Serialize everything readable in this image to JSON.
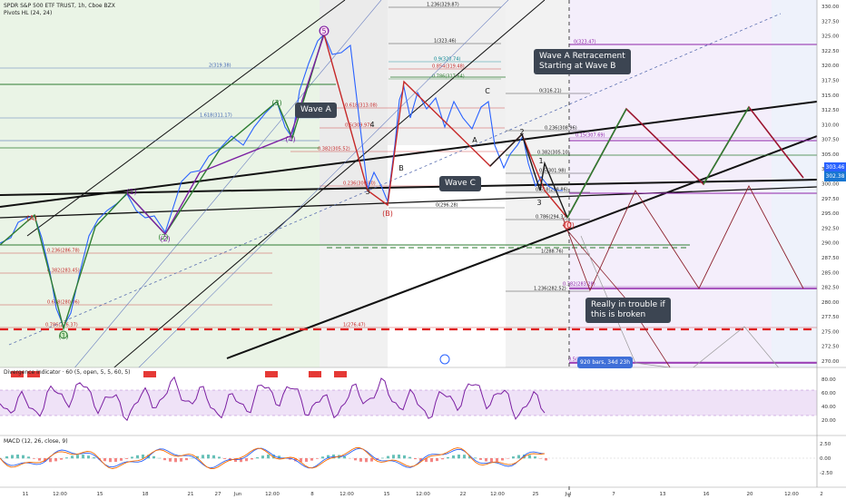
{
  "header": {
    "symbol": "SPDR S&P 500 ETF TRUST, 1h, Cboe BZX",
    "pivots": "Pivots HL (24, 24)",
    "divergence": "Divergence Indicator · 60 (5, open, 5, 5, 60, 5)",
    "macd": "MACD (12, 26, close, 9)"
  },
  "annotations": {
    "wave_a": "Wave A",
    "wave_c": "Wave C",
    "retracement": "Wave A Retracement\nStarting at Wave B",
    "trouble": "Really in trouble if\nthis is broken",
    "bars_range": "920 bars, 34d 23h"
  },
  "price_tags": {
    "last": "303.46",
    "prev": "302.38"
  },
  "chart_data": {
    "type": "line",
    "price_axis": [
      "330.00",
      "327.50",
      "325.00",
      "322.50",
      "320.00",
      "317.50",
      "315.00",
      "312.50",
      "310.00",
      "307.50",
      "305.00",
      "302.50",
      "300.00",
      "297.50",
      "295.00",
      "292.50",
      "290.00",
      "287.50",
      "285.00",
      "282.50",
      "280.00",
      "277.50",
      "275.00",
      "272.50",
      "270.00"
    ],
    "divergence_axis": [
      "80.00",
      "60.00",
      "40.00",
      "20.00"
    ],
    "macd_axis": [
      "2.50",
      "0.00",
      "-2.50"
    ],
    "time_axis": [
      "11",
      "12:00",
      "15",
      "18",
      "21",
      "27",
      "Jun",
      "12:00",
      "8",
      "12:00",
      "15",
      "12:00",
      "22",
      "12:00",
      "25",
      "Jul",
      "7",
      "13",
      "16",
      "20",
      "12:00",
      "2"
    ],
    "wave_labels": [
      "(5)",
      "(4)",
      "(3)",
      "(2)",
      "(1)",
      "4",
      "3",
      "B",
      "(B)",
      "A",
      "C",
      "3",
      "2",
      "(C)",
      "1",
      "(A)",
      "(1)",
      "(2)"
    ],
    "fib_levels": [
      "1.236(329.87)",
      "1(323.46)",
      "0.9(320.74)",
      "0.854(319.48)",
      "0.786(317.64)",
      "0.618(313.08)",
      "0.5(309.97)",
      "0.382(305.52)",
      "0.236(300.80)",
      "0(296.28)",
      "0(316.21)",
      "0.236(308.96)",
      "0.382(305.10)",
      "0.5(301.98)",
      "0.618(298.86)",
      "0.786(294.37)",
      "1(288.76)",
      "1.236(282.52)",
      "0(323.47)",
      "0.15(307.69)",
      "0.382(283.28)",
      "0.5(270.87)",
      "2(319.38)",
      "1.618(311.17)",
      "0.786(276.37)",
      "1(276.47)",
      "0.236(286.78)",
      "0.382(283.45)",
      "0.618(280.06)"
    ]
  }
}
